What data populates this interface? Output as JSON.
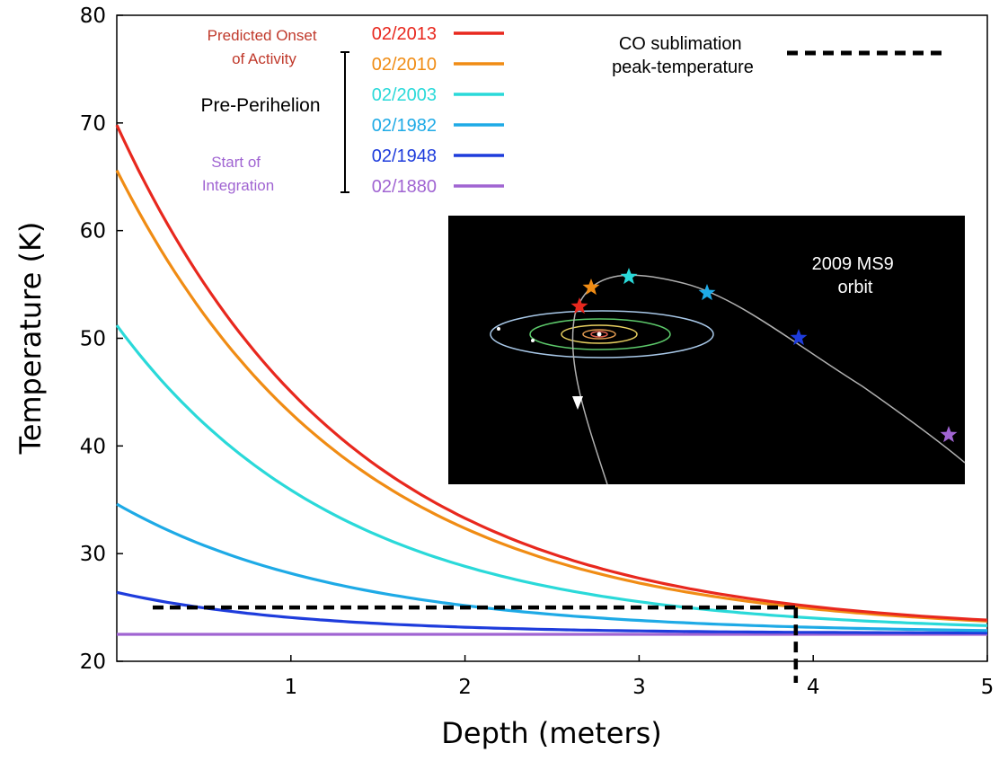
{
  "chart_data": {
    "type": "line",
    "xlabel": "Depth (meters)",
    "ylabel": "Temperature (K)",
    "xlim": [
      0,
      5
    ],
    "ylim": [
      20,
      80
    ],
    "x_ticks": [
      "1",
      "2",
      "3",
      "4",
      "5"
    ],
    "y_ticks": [
      "20",
      "30",
      "40",
      "50",
      "60",
      "70",
      "80"
    ],
    "x_tick_values": [
      1,
      2,
      3,
      4,
      5
    ],
    "y_tick_values": [
      20,
      30,
      40,
      50,
      60,
      70,
      80
    ],
    "grid": false,
    "legend_position": "top",
    "series": [
      {
        "name": "02/2013",
        "color": "#e8281e",
        "surface": 69.8,
        "base": 22.7,
        "decay": 1.34
      },
      {
        "name": "02/2010",
        "color": "#f08c14",
        "surface": 65.6,
        "base": 22.7,
        "decay": 1.34
      },
      {
        "name": "02/2003",
        "color": "#2ad9d9",
        "surface": 51.2,
        "base": 22.7,
        "decay": 1.3
      },
      {
        "name": "02/1982",
        "color": "#1eaae6",
        "surface": 34.6,
        "base": 22.6,
        "decay": 1.3
      },
      {
        "name": "02/1948",
        "color": "#1e3cdc",
        "surface": 26.4,
        "base": 22.6,
        "decay": 1.05
      },
      {
        "name": "02/1880",
        "color": "#a064d2",
        "surface": 22.5,
        "base": 22.5,
        "decay": 1.0
      }
    ],
    "sample_x": [
      0,
      0.5,
      1,
      1.5,
      2,
      2.5,
      3,
      3.5,
      4,
      4.5,
      5
    ],
    "reference_line": {
      "name": "CO sublimation peak-temperature",
      "label_lines": [
        "CO sublimation",
        "peak-temperature"
      ],
      "y": 25,
      "x_end": 3.9,
      "color": "#000000"
    },
    "annotations": {
      "predicted_onset": {
        "lines": [
          "Predicted Onset",
          "of Activity"
        ],
        "color": "#c0392b"
      },
      "pre_perihelion": {
        "text": "Pre-Perihelion",
        "color": "#000000"
      },
      "start_integration": {
        "lines": [
          "Start of",
          "Integration"
        ],
        "color": "#a064d2"
      }
    },
    "inset": {
      "label_lines": [
        "2009 MS9",
        "orbit"
      ],
      "background": "#000000"
    }
  }
}
